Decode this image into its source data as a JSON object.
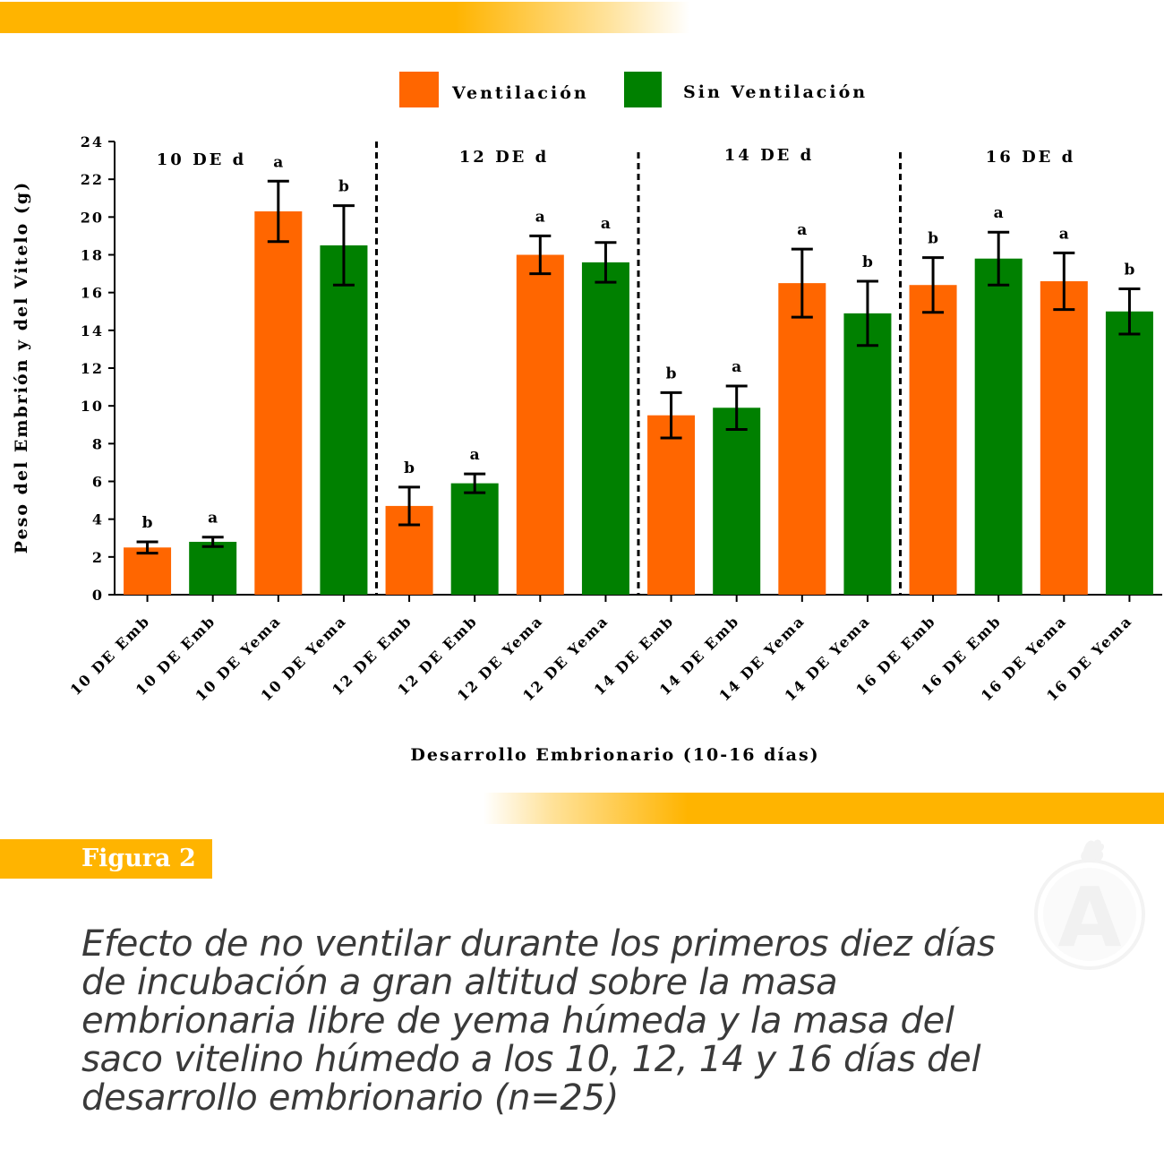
{
  "figure_tag": "Figura 2",
  "caption": "Efecto de no ventilar durante los primeros diez días de incubación a gran altitud sobre la masa embrionaria libre de yema húmeda y la masa del saco vitelino húmedo a los 10, 12, 14 y 16 días del desarrollo embrionario (n=25)",
  "logo_letter": "A",
  "logo_icon": "rooster-icon",
  "colors": {
    "accent": "#ffb400",
    "ventilacion": "#ff6600",
    "sin_ventilacion": "#008000",
    "caption_text": "#3a3a3a"
  },
  "chart_data": {
    "type": "bar",
    "title": "",
    "xlabel": "Desarrollo Embrionario (10-16 días)",
    "ylabel": "Peso del Embrión y del Vitelo (g)",
    "ylim": [
      0,
      24
    ],
    "yticks": [
      "0",
      "2",
      "4",
      "6",
      "8",
      "10",
      "12",
      "14",
      "16",
      "18",
      "20",
      "22",
      "24"
    ],
    "grid": false,
    "legend_position": "top-center",
    "legend": [
      {
        "label": "Ventilación",
        "color": "#ff6600"
      },
      {
        "label": "Sin Ventilación",
        "color": "#008000"
      }
    ],
    "groups": [
      "10 DE d",
      "12 DE d",
      "14 DE d",
      "16 DE d"
    ],
    "categories": [
      "10 DE Emb",
      "10 DE Emb",
      "10 DE Yema",
      "10 DE Yema",
      "12 DE Emb",
      "12 DE Emb",
      "12 DE Yema",
      "12 DE Yema",
      "14 DE Emb",
      "14 DE Emb",
      "14 DE Yema",
      "14 DE Yema",
      "16 DE Emb",
      "16 DE Emb",
      "16 DE Yema",
      "16 DE Yema"
    ],
    "series_index": [
      0,
      1,
      0,
      1,
      0,
      1,
      0,
      1,
      0,
      1,
      0,
      1,
      0,
      1,
      0,
      1
    ],
    "values": [
      2.5,
      2.8,
      20.3,
      18.5,
      4.7,
      5.9,
      18.0,
      17.6,
      9.5,
      9.9,
      16.5,
      14.9,
      16.4,
      17.8,
      16.6,
      15.0
    ],
    "errors": [
      0.3,
      0.25,
      1.6,
      2.1,
      1.0,
      0.5,
      1.0,
      1.05,
      1.2,
      1.15,
      1.8,
      1.7,
      1.45,
      1.4,
      1.5,
      1.2
    ],
    "significance": [
      "b",
      "a",
      "a",
      "b",
      "b",
      "a",
      "a",
      "a",
      "b",
      "a",
      "a",
      "b",
      "b",
      "a",
      "a",
      "b"
    ]
  }
}
